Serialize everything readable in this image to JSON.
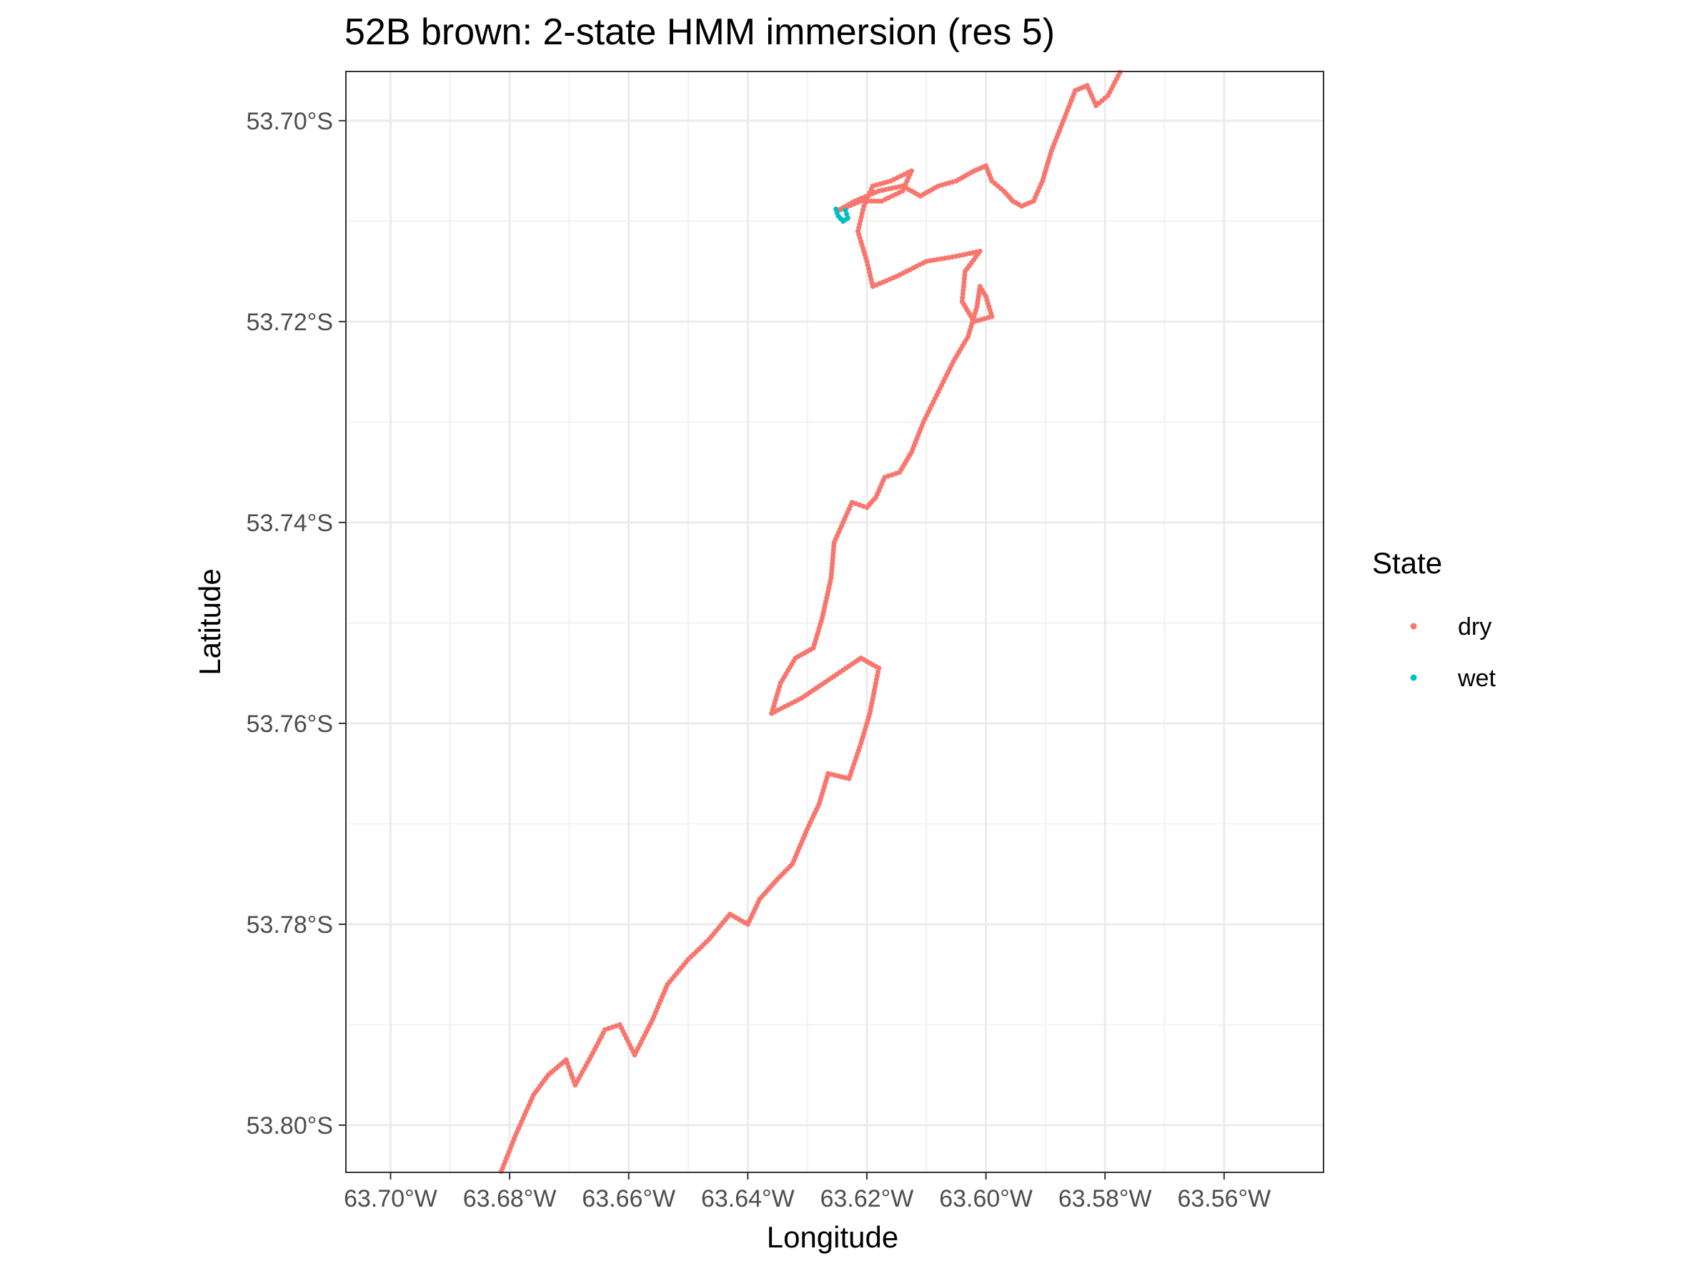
{
  "chart_data": {
    "type": "scatter",
    "title": "52B brown: 2-state HMM immersion (res 5)",
    "xlabel": "Longitude",
    "ylabel": "Latitude",
    "x_ticks": [
      {
        "value": -63.7,
        "label": "63.70°W"
      },
      {
        "value": -63.68,
        "label": "63.68°W"
      },
      {
        "value": -63.66,
        "label": "63.66°W"
      },
      {
        "value": -63.64,
        "label": "63.64°W"
      },
      {
        "value": -63.62,
        "label": "63.62°W"
      },
      {
        "value": -63.6,
        "label": "63.60°W"
      },
      {
        "value": -63.58,
        "label": "63.58°W"
      },
      {
        "value": -63.56,
        "label": "63.56°W"
      }
    ],
    "y_ticks": [
      {
        "value": -53.7,
        "label": "53.70°S"
      },
      {
        "value": -53.72,
        "label": "53.72°S"
      },
      {
        "value": -53.74,
        "label": "53.74°S"
      },
      {
        "value": -53.76,
        "label": "53.76°S"
      },
      {
        "value": -53.78,
        "label": "53.78°S"
      },
      {
        "value": -53.8,
        "label": "53.80°S"
      }
    ],
    "xlim": [
      -63.7075,
      -63.5433
    ],
    "ylim": [
      -53.8047,
      -53.6951
    ],
    "grid": true,
    "legend": {
      "title": "State",
      "position": "right",
      "entries": [
        {
          "name": "dry",
          "color": "#F8766D"
        },
        {
          "name": "wet",
          "color": "#00BFC4"
        }
      ]
    },
    "series": [
      {
        "name": "dry",
        "color": "#F8766D",
        "points": [
          [
            -63.6814,
            -53.8046
          ],
          [
            -63.679,
            -53.801
          ],
          [
            -63.676,
            -53.797
          ],
          [
            -63.6735,
            -53.795
          ],
          [
            -63.6705,
            -53.7935
          ],
          [
            -63.669,
            -53.796
          ],
          [
            -63.666,
            -53.7928
          ],
          [
            -63.664,
            -53.7905
          ],
          [
            -63.6615,
            -53.79
          ],
          [
            -63.659,
            -53.793
          ],
          [
            -63.656,
            -53.7895
          ],
          [
            -63.6535,
            -53.786
          ],
          [
            -63.65,
            -53.7835
          ],
          [
            -63.6465,
            -53.7815
          ],
          [
            -63.643,
            -53.779
          ],
          [
            -63.64,
            -53.78
          ],
          [
            -63.638,
            -53.7775
          ],
          [
            -63.635,
            -53.7755
          ],
          [
            -63.6325,
            -53.774
          ],
          [
            -63.63,
            -53.7705
          ],
          [
            -63.628,
            -53.768
          ],
          [
            -63.6265,
            -53.765
          ],
          [
            -63.623,
            -53.7655
          ],
          [
            -63.621,
            -53.762
          ],
          [
            -63.6195,
            -53.759
          ],
          [
            -63.6185,
            -53.756
          ],
          [
            -63.618,
            -53.7545
          ],
          [
            -63.621,
            -53.7535
          ],
          [
            -63.626,
            -53.7555
          ],
          [
            -63.631,
            -53.7575
          ],
          [
            -63.636,
            -53.759
          ],
          [
            -63.6345,
            -53.756
          ],
          [
            -63.632,
            -53.7535
          ],
          [
            -63.629,
            -53.7525
          ],
          [
            -63.6275,
            -53.7495
          ],
          [
            -63.626,
            -53.7455
          ],
          [
            -63.6255,
            -53.742
          ],
          [
            -63.624,
            -53.74
          ],
          [
            -63.6225,
            -53.738
          ],
          [
            -63.62,
            -53.7385
          ],
          [
            -63.6185,
            -53.7375
          ],
          [
            -63.617,
            -53.7355
          ],
          [
            -63.6145,
            -53.735
          ],
          [
            -63.6125,
            -53.733
          ],
          [
            -63.6105,
            -53.73
          ],
          [
            -63.608,
            -53.727
          ],
          [
            -63.6055,
            -53.724
          ],
          [
            -63.603,
            -53.7215
          ],
          [
            -63.6015,
            -53.7185
          ],
          [
            -63.601,
            -53.7165
          ],
          [
            -63.6,
            -53.7175
          ],
          [
            -63.599,
            -53.7195
          ],
          [
            -63.602,
            -53.72
          ],
          [
            -63.604,
            -53.718
          ],
          [
            -63.6035,
            -53.715
          ],
          [
            -63.601,
            -53.713
          ],
          [
            -63.605,
            -53.7135
          ],
          [
            -63.61,
            -53.714
          ],
          [
            -63.615,
            -53.7155
          ],
          [
            -63.619,
            -53.7165
          ],
          [
            -63.62,
            -53.714
          ],
          [
            -63.6215,
            -53.711
          ],
          [
            -63.6205,
            -53.7085
          ],
          [
            -63.619,
            -53.7065
          ],
          [
            -63.616,
            -53.706
          ],
          [
            -63.6125,
            -53.705
          ],
          [
            -63.614,
            -53.707
          ],
          [
            -63.6175,
            -53.708
          ],
          [
            -63.621,
            -53.708
          ],
          [
            -63.625,
            -53.709
          ],
          [
            -63.622,
            -53.708
          ],
          [
            -63.618,
            -53.707
          ],
          [
            -63.614,
            -53.7065
          ],
          [
            -63.611,
            -53.7075
          ],
          [
            -63.608,
            -53.7065
          ],
          [
            -63.605,
            -53.706
          ],
          [
            -63.602,
            -53.705
          ],
          [
            -63.6,
            -53.7045
          ],
          [
            -63.599,
            -53.706
          ],
          [
            -63.597,
            -53.707
          ],
          [
            -63.5955,
            -53.708
          ],
          [
            -63.594,
            -53.7085
          ],
          [
            -63.592,
            -53.708
          ],
          [
            -63.5905,
            -53.706
          ],
          [
            -63.589,
            -53.703
          ],
          [
            -63.587,
            -53.7
          ],
          [
            -63.585,
            -53.697
          ],
          [
            -63.583,
            -53.6965
          ],
          [
            -63.5815,
            -53.6985
          ],
          [
            -63.5795,
            -53.6975
          ],
          [
            -63.5775,
            -53.6952
          ]
        ]
      },
      {
        "name": "wet",
        "color": "#00BFC4",
        "points": [
          [
            -63.6252,
            -53.7088
          ],
          [
            -63.6248,
            -53.7095
          ],
          [
            -63.624,
            -53.71
          ],
          [
            -63.6232,
            -53.7097
          ],
          [
            -63.6236,
            -53.7089
          ]
        ]
      }
    ]
  }
}
